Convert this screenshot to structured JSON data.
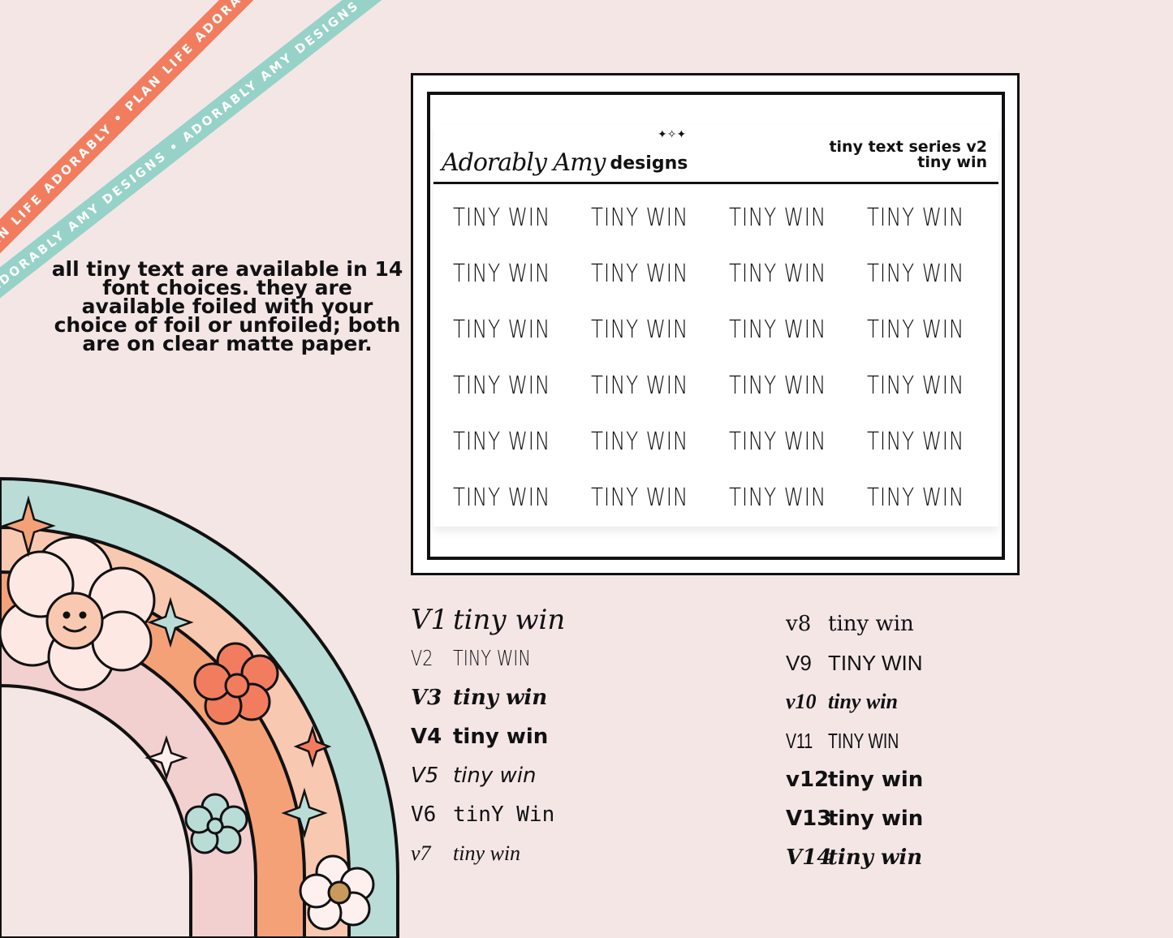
{
  "ribbons": {
    "orange_text": "PLAN LIFE ADORABLY • PLAN LIFE ADORABLY • PLAN LIFE ADORABLY",
    "teal_text": "ADORABLY AMY DESIGNS • ADORABLY AMY DESIGNS • ADORABLY AMY DESIGNS"
  },
  "description": "all tiny text are available in 14 font choices. they are available foiled with your choice of foil or unfoiled; both are on clear matte paper.",
  "sheet": {
    "brand_script": "Adorably Amy",
    "brand_designs": "designs",
    "title_line1": "tiny text series v2",
    "title_line2": "tiny win",
    "sticker_text": "TINY WIN",
    "rows": 6,
    "cols": 4
  },
  "versions_left": [
    {
      "label": "V1",
      "sample": "tiny win",
      "font": "f1"
    },
    {
      "label": "V2",
      "sample": "TINY WIN",
      "font": "f2"
    },
    {
      "label": "V3",
      "sample": "tiny win",
      "font": "f3"
    },
    {
      "label": "V4",
      "sample": "tiny win",
      "font": "f4"
    },
    {
      "label": "V5",
      "sample": "tiny win",
      "font": "f5"
    },
    {
      "label": "V6",
      "sample": "tinY Win",
      "font": "f6"
    },
    {
      "label": "v7",
      "sample": "tiny win",
      "font": "f7"
    }
  ],
  "versions_right": [
    {
      "label": "v8",
      "sample": "tiny win",
      "font": "f8"
    },
    {
      "label": "V9",
      "sample": "TINY WIN",
      "font": "f9"
    },
    {
      "label": "v10",
      "sample": "tiny win",
      "font": "f10"
    },
    {
      "label": "V11",
      "sample": "TINY WIN",
      "font": "f11"
    },
    {
      "label": "v12",
      "sample": "tiny win",
      "font": "f12"
    },
    {
      "label": "V13",
      "sample": "tiny win",
      "font": "f13"
    },
    {
      "label": "V14",
      "sample": "tiny win",
      "font": "f14"
    }
  ],
  "colors": {
    "background": "#f5e6e6",
    "ribbon_orange": "#f27d5e",
    "ribbon_teal": "#96d2c8",
    "rainbow_teal": "#b9dcd6",
    "rainbow_peach": "#f8c9b0",
    "rainbow_orange": "#f5a178",
    "rainbow_pink": "#f2d0cf"
  }
}
